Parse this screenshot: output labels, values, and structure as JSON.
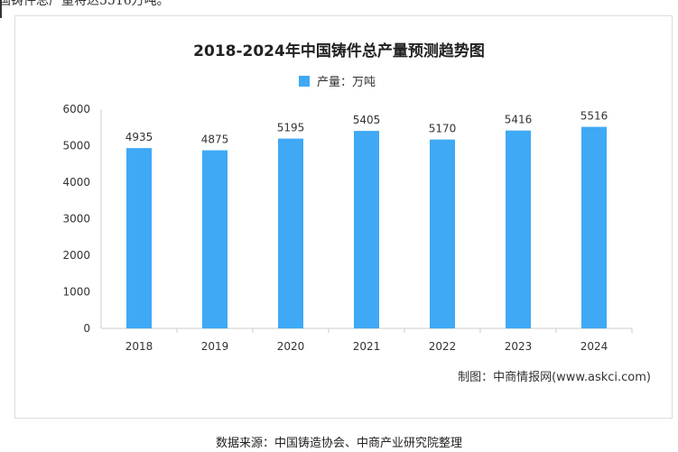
{
  "lead_text": "国铸件总产量将达5516万吨。",
  "chart_data": {
    "type": "bar",
    "title": "2018-2024年中国铸件总产量预测趋势图",
    "legend": [
      "产量：万吨"
    ],
    "legend_position": "top",
    "categories": [
      "2018",
      "2019",
      "2020",
      "2021",
      "2022",
      "2023",
      "2024"
    ],
    "values": [
      4935,
      4875,
      5195,
      5405,
      5170,
      5416,
      5516
    ],
    "ylim": [
      0,
      6000
    ],
    "yticks": [
      0,
      1000,
      2000,
      3000,
      4000,
      5000,
      6000
    ],
    "xlabel": "",
    "ylabel": "",
    "grid": false,
    "bar_color": "#3fa9f5"
  },
  "credit": "制图：中商情报网(www.askci.com)",
  "source": "数据来源：中国铸造协会、中商产业研究院整理"
}
